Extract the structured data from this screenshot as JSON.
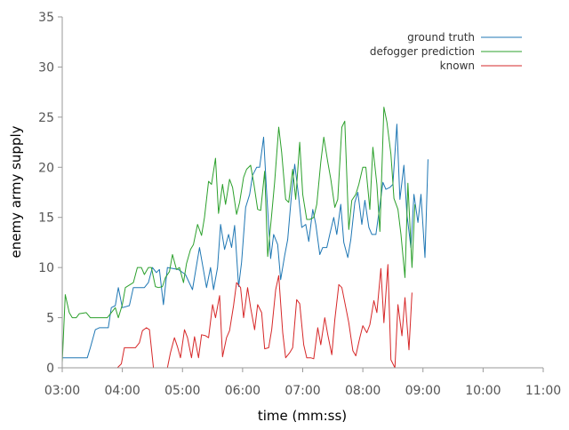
{
  "chart_data": {
    "type": "line",
    "xlabel": "time (mm:ss)",
    "ylabel": "enemy army supply",
    "xlim": [
      "03:00",
      "11:00"
    ],
    "ylim": [
      0,
      35
    ],
    "x_ticks": [
      "03:00",
      "04:00",
      "05:00",
      "06:00",
      "07:00",
      "08:00",
      "09:00",
      "10:00",
      "11:00"
    ],
    "y_ticks": [
      "0",
      "5",
      "10",
      "15",
      "20",
      "25",
      "30",
      "35"
    ],
    "grid": false,
    "legend_position": "top-right",
    "series": [
      {
        "name": "ground truth",
        "color": "#1f77b4",
        "points": [
          [
            "03:00",
            1.0
          ],
          [
            "03:25",
            1.0
          ],
          [
            "03:28",
            2.0
          ],
          [
            "03:33",
            3.8
          ],
          [
            "03:37",
            4.0
          ],
          [
            "03:46",
            4.0
          ],
          [
            "03:49",
            6.0
          ],
          [
            "03:53",
            6.2
          ],
          [
            "03:56",
            8.0
          ],
          [
            "04:00",
            6.0
          ],
          [
            "04:07",
            6.2
          ],
          [
            "04:11",
            8.0
          ],
          [
            "04:22",
            8.0
          ],
          [
            "04:26",
            8.5
          ],
          [
            "04:30",
            10.0
          ],
          [
            "04:34",
            9.5
          ],
          [
            "04:37",
            9.8
          ],
          [
            "04:41",
            6.3
          ],
          [
            "04:45",
            10.0
          ],
          [
            "04:56",
            9.8
          ],
          [
            "05:03",
            9.3
          ],
          [
            "05:10",
            7.8
          ],
          [
            "05:17",
            12.0
          ],
          [
            "05:24",
            8.0
          ],
          [
            "05:28",
            10.0
          ],
          [
            "05:31",
            7.8
          ],
          [
            "05:35",
            10.0
          ],
          [
            "05:38",
            14.3
          ],
          [
            "05:42",
            11.8
          ],
          [
            "05:46",
            13.3
          ],
          [
            "05:49",
            12.0
          ],
          [
            "05:52",
            14.2
          ],
          [
            "05:56",
            8.1
          ],
          [
            "05:59",
            10.5
          ],
          [
            "06:03",
            16.0
          ],
          [
            "06:07",
            17.3
          ],
          [
            "06:10",
            19.2
          ],
          [
            "06:14",
            20.0
          ],
          [
            "06:17",
            20.0
          ],
          [
            "06:21",
            23.0
          ],
          [
            "06:24",
            17.5
          ],
          [
            "06:28",
            10.9
          ],
          [
            "06:31",
            13.3
          ],
          [
            "06:35",
            12.3
          ],
          [
            "06:38",
            8.8
          ],
          [
            "06:42",
            11.2
          ],
          [
            "06:45",
            12.8
          ],
          [
            "06:49",
            17.5
          ],
          [
            "06:52",
            20.3
          ],
          [
            "06:56",
            17.0
          ],
          [
            "06:59",
            14.0
          ],
          [
            "07:03",
            14.3
          ],
          [
            "07:06",
            12.6
          ],
          [
            "07:10",
            15.8
          ],
          [
            "07:13",
            14.3
          ],
          [
            "07:17",
            11.3
          ],
          [
            "07:20",
            12.0
          ],
          [
            "07:24",
            12.0
          ],
          [
            "07:27",
            13.3
          ],
          [
            "07:31",
            15.0
          ],
          [
            "07:34",
            13.3
          ],
          [
            "07:38",
            16.3
          ],
          [
            "07:41",
            12.5
          ],
          [
            "07:45",
            11.0
          ],
          [
            "07:48",
            12.8
          ],
          [
            "07:52",
            16.5
          ],
          [
            "07:55",
            17.5
          ],
          [
            "07:59",
            14.3
          ],
          [
            "08:02",
            16.7
          ],
          [
            "08:06",
            14.0
          ],
          [
            "08:09",
            13.3
          ],
          [
            "08:13",
            13.3
          ],
          [
            "08:16",
            15.5
          ],
          [
            "08:20",
            18.5
          ],
          [
            "08:23",
            17.8
          ],
          [
            "08:27",
            18.0
          ],
          [
            "08:30",
            18.3
          ],
          [
            "08:34",
            24.3
          ],
          [
            "08:37",
            16.8
          ],
          [
            "08:41",
            20.2
          ],
          [
            "08:44",
            15.3
          ],
          [
            "08:48",
            12.0
          ],
          [
            "08:51",
            17.3
          ],
          [
            "08:55",
            14.5
          ],
          [
            "08:58",
            17.3
          ],
          [
            "09:02",
            11.0
          ],
          [
            "09:05",
            20.8
          ]
        ]
      },
      {
        "name": "defogger prediction",
        "color": "#2ca02c",
        "points": [
          [
            "03:00",
            0.5
          ],
          [
            "03:03",
            7.3
          ],
          [
            "03:07",
            5.5
          ],
          [
            "03:10",
            5.0
          ],
          [
            "03:14",
            5.0
          ],
          [
            "03:17",
            5.4
          ],
          [
            "03:24",
            5.5
          ],
          [
            "03:28",
            5.0
          ],
          [
            "03:45",
            5.0
          ],
          [
            "03:49",
            5.5
          ],
          [
            "03:53",
            6.0
          ],
          [
            "03:56",
            5.0
          ],
          [
            "04:00",
            6.3
          ],
          [
            "04:03",
            8.0
          ],
          [
            "04:11",
            8.5
          ],
          [
            "04:15",
            10.0
          ],
          [
            "04:19",
            10.0
          ],
          [
            "04:22",
            9.3
          ],
          [
            "04:26",
            10.0
          ],
          [
            "04:29",
            10.0
          ],
          [
            "04:33",
            8.1
          ],
          [
            "04:36",
            8.0
          ],
          [
            "04:40",
            8.1
          ],
          [
            "04:43",
            9.0
          ],
          [
            "04:47",
            9.6
          ],
          [
            "04:50",
            11.3
          ],
          [
            "04:54",
            9.8
          ],
          [
            "04:57",
            10.0
          ],
          [
            "05:01",
            8.5
          ],
          [
            "05:04",
            10.4
          ],
          [
            "05:08",
            11.8
          ],
          [
            "05:11",
            12.3
          ],
          [
            "05:15",
            14.3
          ],
          [
            "05:19",
            13.2
          ],
          [
            "05:22",
            15.0
          ],
          [
            "05:26",
            18.6
          ],
          [
            "05:29",
            18.3
          ],
          [
            "05:33",
            20.9
          ],
          [
            "05:36",
            15.4
          ],
          [
            "05:40",
            18.3
          ],
          [
            "05:43",
            16.3
          ],
          [
            "05:47",
            18.8
          ],
          [
            "05:50",
            18.0
          ],
          [
            "05:54",
            15.3
          ],
          [
            "05:57",
            16.5
          ],
          [
            "06:01",
            19.0
          ],
          [
            "06:04",
            19.8
          ],
          [
            "06:08",
            20.2
          ],
          [
            "06:11",
            18.5
          ],
          [
            "06:15",
            15.8
          ],
          [
            "06:18",
            15.7
          ],
          [
            "06:22",
            19.6
          ],
          [
            "06:25",
            11.1
          ],
          [
            "06:29",
            15.3
          ],
          [
            "06:32",
            18.5
          ],
          [
            "06:36",
            24.0
          ],
          [
            "06:39",
            21.5
          ],
          [
            "06:43",
            16.8
          ],
          [
            "06:46",
            16.5
          ],
          [
            "06:50",
            19.8
          ],
          [
            "06:53",
            16.8
          ],
          [
            "06:57",
            22.5
          ],
          [
            "07:00",
            17.3
          ],
          [
            "07:04",
            14.8
          ],
          [
            "07:07",
            14.8
          ],
          [
            "07:11",
            15.0
          ],
          [
            "07:14",
            16.3
          ],
          [
            "07:18",
            20.5
          ],
          [
            "07:21",
            23.0
          ],
          [
            "07:25",
            20.5
          ],
          [
            "07:28",
            18.8
          ],
          [
            "07:32",
            16.0
          ],
          [
            "07:35",
            16.8
          ],
          [
            "07:39",
            24.0
          ],
          [
            "07:42",
            24.6
          ],
          [
            "07:46",
            13.8
          ],
          [
            "07:49",
            16.7
          ],
          [
            "07:53",
            17.3
          ],
          [
            "07:56",
            18.3
          ],
          [
            "08:00",
            20.0
          ],
          [
            "08:03",
            20.0
          ],
          [
            "08:07",
            15.8
          ],
          [
            "08:10",
            22.0
          ],
          [
            "08:14",
            18.3
          ],
          [
            "08:17",
            13.6
          ],
          [
            "08:21",
            26.0
          ],
          [
            "08:24",
            24.5
          ],
          [
            "08:28",
            21.3
          ],
          [
            "08:31",
            16.9
          ],
          [
            "08:35",
            15.8
          ],
          [
            "08:38",
            13.3
          ],
          [
            "08:42",
            9.0
          ],
          [
            "08:45",
            18.4
          ],
          [
            "08:49",
            10.0
          ],
          [
            "08:52",
            16.3
          ]
        ]
      },
      {
        "name": "known",
        "color": "#d62728",
        "points": [
          [
            "03:55",
            0.0
          ],
          [
            "03:59",
            0.4
          ],
          [
            "04:02",
            2.0
          ],
          [
            "04:13",
            2.0
          ],
          [
            "04:17",
            2.5
          ],
          [
            "04:20",
            3.7
          ],
          [
            "04:24",
            4.0
          ],
          [
            "04:27",
            3.8
          ],
          [
            "04:31",
            0.0
          ],
          [
            "04:45",
            0.0
          ],
          [
            "04:48",
            1.5
          ],
          [
            "04:52",
            3.0
          ],
          [
            "04:55",
            2.1
          ],
          [
            "04:58",
            1.0
          ],
          [
            "05:02",
            3.8
          ],
          [
            "05:05",
            3.0
          ],
          [
            "05:09",
            1.0
          ],
          [
            "05:12",
            3.1
          ],
          [
            "05:16",
            1.0
          ],
          [
            "05:19",
            3.3
          ],
          [
            "05:23",
            3.2
          ],
          [
            "05:26",
            3.0
          ],
          [
            "05:30",
            6.3
          ],
          [
            "05:33",
            5.0
          ],
          [
            "05:37",
            7.2
          ],
          [
            "05:40",
            1.1
          ],
          [
            "05:44",
            3.0
          ],
          [
            "05:47",
            3.7
          ],
          [
            "05:51",
            6.2
          ],
          [
            "05:54",
            8.5
          ],
          [
            "05:58",
            8.0
          ],
          [
            "06:01",
            5.0
          ],
          [
            "06:05",
            8.0
          ],
          [
            "06:08",
            6.0
          ],
          [
            "06:12",
            3.8
          ],
          [
            "06:15",
            6.3
          ],
          [
            "06:19",
            5.5
          ],
          [
            "06:22",
            1.9
          ],
          [
            "06:26",
            2.0
          ],
          [
            "06:29",
            3.8
          ],
          [
            "06:33",
            7.8
          ],
          [
            "06:36",
            9.2
          ],
          [
            "06:40",
            3.5
          ],
          [
            "06:43",
            1.0
          ],
          [
            "06:47",
            1.5
          ],
          [
            "06:50",
            2.0
          ],
          [
            "06:54",
            6.8
          ],
          [
            "06:57",
            6.4
          ],
          [
            "07:01",
            2.3
          ],
          [
            "07:04",
            1.0
          ],
          [
            "07:08",
            1.0
          ],
          [
            "07:11",
            0.9
          ],
          [
            "07:15",
            4.0
          ],
          [
            "07:18",
            2.3
          ],
          [
            "07:22",
            5.0
          ],
          [
            "07:25",
            3.3
          ],
          [
            "07:29",
            1.3
          ],
          [
            "07:32",
            4.8
          ],
          [
            "07:36",
            8.3
          ],
          [
            "07:39",
            8.0
          ],
          [
            "07:43",
            6.0
          ],
          [
            "07:46",
            4.5
          ],
          [
            "07:50",
            1.7
          ],
          [
            "07:53",
            1.2
          ],
          [
            "07:57",
            3.0
          ],
          [
            "08:00",
            4.2
          ],
          [
            "08:04",
            3.5
          ],
          [
            "08:07",
            4.3
          ],
          [
            "08:11",
            6.7
          ],
          [
            "08:14",
            5.5
          ],
          [
            "08:18",
            9.9
          ],
          [
            "08:21",
            4.5
          ],
          [
            "08:25",
            10.3
          ],
          [
            "08:28",
            0.8
          ],
          [
            "08:32",
            0.0
          ],
          [
            "08:35",
            6.3
          ],
          [
            "08:39",
            3.2
          ],
          [
            "08:42",
            7.0
          ],
          [
            "08:46",
            1.8
          ],
          [
            "08:49",
            7.5
          ]
        ]
      }
    ]
  }
}
